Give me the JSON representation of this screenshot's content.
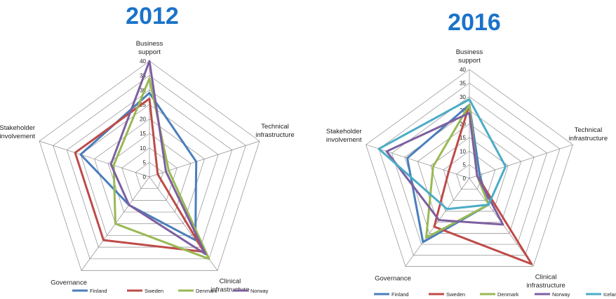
{
  "colors": {
    "title": "#1a73c9",
    "grid": "#8c8c8c"
  },
  "chart_data": [
    {
      "type": "radar",
      "title": "2012",
      "axes": [
        "Business support",
        "Technical infrastructure",
        "Clinical infrastructure",
        "Governance",
        "Stakeholder involvement"
      ],
      "axis_label_lines": [
        [
          "Business",
          "support"
        ],
        [
          "Technical",
          "infrastructure"
        ],
        [
          "Clinical",
          "infrastructure"
        ],
        [
          "Governance"
        ],
        [
          "Stakeholder",
          "involvement"
        ]
      ],
      "ticks": [
        "0",
        "5",
        "10",
        "15",
        "20",
        "25",
        "30",
        "35",
        "40"
      ],
      "rmax": 40,
      "series": [
        {
          "name": "Finland",
          "color": "#4a7ebb",
          "values": [
            29,
            17,
            27,
            12,
            25
          ]
        },
        {
          "name": "Sweden",
          "color": "#be4b48",
          "values": [
            27,
            3,
            32,
            27,
            27
          ]
        },
        {
          "name": "Denmark",
          "color": "#98b954",
          "values": [
            34,
            7,
            35,
            20,
            13
          ]
        },
        {
          "name": "Norway",
          "color": "#7d5fa0",
          "values": [
            40,
            6,
            33,
            12,
            14
          ]
        }
      ]
    },
    {
      "type": "radar",
      "title": "2016",
      "axes": [
        "Business support",
        "Technical infrastructure",
        "Clinical infrastructure",
        "Governance",
        "Stakeholder involvement"
      ],
      "axis_label_lines": [
        [
          "Business",
          "support"
        ],
        [
          "Technical",
          "infrastructure"
        ],
        [
          "Clinical",
          "infrastructure"
        ],
        [
          "Governance"
        ],
        [
          "Stakeholder",
          "involvement"
        ]
      ],
      "ticks": [
        "0",
        "5",
        "10",
        "15",
        "20",
        "25",
        "30",
        "35",
        "40"
      ],
      "rmax": 40,
      "series": [
        {
          "name": "Finland",
          "color": "#4a7ebb",
          "values": [
            27,
            4,
            12,
            29,
            24
          ]
        },
        {
          "name": "Sweden",
          "color": "#be4b48",
          "values": [
            27,
            3,
            39,
            22,
            8
          ]
        },
        {
          "name": "Denmark",
          "color": "#98b954",
          "values": [
            27,
            3,
            12,
            27,
            14
          ]
        },
        {
          "name": "Norway",
          "color": "#7d5fa0",
          "values": [
            24,
            3,
            21,
            19,
            32
          ]
        },
        {
          "name": "Iceland",
          "color": "#4bacc6",
          "values": [
            29,
            14,
            12,
            14,
            35
          ]
        }
      ]
    }
  ]
}
